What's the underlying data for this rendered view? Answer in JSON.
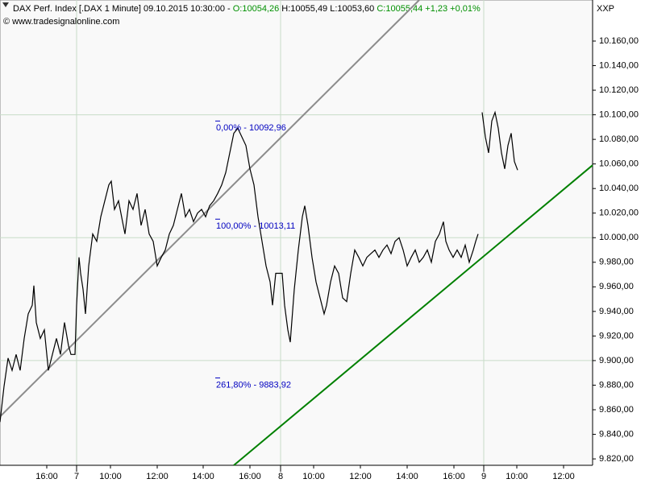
{
  "chart_data": {
    "type": "line",
    "header": {
      "instrument": "DAX Perf. Index [.DAX  1 Minute] 09.10.2015 10:30:00 -",
      "open": "O:10054,26",
      "high_low": "H:10055,49 L:10053,60",
      "close": "C:10055,44 +1,23 +0,01%",
      "copyright": "© www.tradesignalonline.com",
      "axis_name": "XXP"
    },
    "xlim": [
      0,
      735
    ],
    "xticks": [
      {
        "value": 58,
        "label": "16:00"
      },
      {
        "value": 95,
        "label": "7"
      },
      {
        "value": 137,
        "label": "10:00"
      },
      {
        "value": 195,
        "label": "12:00"
      },
      {
        "value": 252,
        "label": "14:00"
      },
      {
        "value": 310,
        "label": "16:00"
      },
      {
        "value": 348,
        "label": "8"
      },
      {
        "value": 389,
        "label": "10:00"
      },
      {
        "value": 447,
        "label": "12:00"
      },
      {
        "value": 505,
        "label": "14:00"
      },
      {
        "value": 563,
        "label": "16:00"
      },
      {
        "value": 600,
        "label": "9"
      },
      {
        "value": 641,
        "label": "10:00"
      },
      {
        "value": 699,
        "label": "12:00"
      }
    ],
    "x_grid_lines": [
      95,
      348,
      600
    ],
    "ylim": [
      9814.8,
      10193.4
    ],
    "yticks": [
      {
        "value": 9820,
        "label": "9.820,00"
      },
      {
        "value": 9840,
        "label": "9.840,00"
      },
      {
        "value": 9860,
        "label": "9.860,00"
      },
      {
        "value": 9880,
        "label": "9.880,00"
      },
      {
        "value": 9900,
        "label": "9.900,00"
      },
      {
        "value": 9920,
        "label": "9.920,00"
      },
      {
        "value": 9940,
        "label": "9.940,00"
      },
      {
        "value": 9960,
        "label": "9.960,00"
      },
      {
        "value": 9980,
        "label": "9.980,00"
      },
      {
        "value": 10000,
        "label": "10.000,00"
      },
      {
        "value": 10020,
        "label": "10.020,00"
      },
      {
        "value": 10040,
        "label": "10.040,00"
      },
      {
        "value": 10060,
        "label": "10.060,00"
      },
      {
        "value": 10080,
        "label": "10.080,00"
      },
      {
        "value": 10100,
        "label": "10.100,00"
      },
      {
        "value": 10120,
        "label": "10.120,00"
      },
      {
        "value": 10140,
        "label": "10.140,00"
      },
      {
        "value": 10160,
        "label": "10.160,00"
      }
    ],
    "y_grid_lines": [
      9900,
      10000,
      10100
    ],
    "series": [
      {
        "color": "#000000",
        "x": [
          0,
          5,
          10,
          15,
          20,
          25,
          30,
          35,
          40,
          42,
          45,
          50,
          55,
          60,
          65,
          70,
          75,
          80,
          85,
          88,
          93,
          95,
          98,
          100,
          103,
          106,
          110,
          115,
          120,
          125,
          130,
          135,
          138,
          142,
          147,
          152,
          155,
          160,
          165,
          170,
          175,
          180,
          185,
          190,
          195,
          200,
          205,
          210,
          215,
          220,
          225,
          230,
          235,
          240,
          245,
          250,
          255,
          260,
          265,
          270,
          275,
          280,
          285,
          290,
          295,
          300,
          305,
          310,
          315,
          320,
          325,
          330,
          335,
          338,
          342,
          350,
          353,
          357,
          360,
          365,
          370,
          375,
          378,
          382,
          387,
          392,
          397,
          402,
          405,
          410,
          415,
          420,
          425,
          430,
          435,
          440,
          445,
          450,
          455,
          460,
          465,
          470,
          475,
          480,
          485,
          490,
          495,
          500,
          505,
          510,
          515,
          520,
          525,
          530,
          535,
          540,
          545,
          550,
          553,
          557,
          562,
          567,
          572,
          577,
          582,
          587,
          590,
          593,
          596,
          598,
          602,
          606,
          610,
          614,
          618,
          622,
          626,
          630,
          634,
          638,
          642
        ],
        "values": [
          9850,
          9879,
          9902,
          9892,
          9905,
          9892,
          9918,
          9938,
          9945,
          9961,
          9931,
          9918,
          9925,
          9892,
          9905,
          9918,
          9905,
          9931,
          9912,
          9905,
          9905,
          9945,
          9984,
          9971,
          9958,
          9938,
          9977,
          10003,
          9997,
          10017,
          10030,
          10043,
          10046,
          10023,
          10030,
          10013,
          10003,
          10030,
          10023,
          10036,
          10010,
          10023,
          10003,
          9997,
          9977,
          9984,
          9990,
          10003,
          10010,
          10023,
          10036,
          10017,
          10023,
          10013,
          10020,
          10023,
          10017,
          10026,
          10030,
          10036,
          10043,
          10053,
          10069,
          10085,
          10089,
          10082,
          10075,
          10056,
          10043,
          10017,
          9997,
          9977,
          9964,
          9945,
          9971,
          9971,
          9945,
          9925,
          9915,
          9958,
          9990,
          10017,
          10026,
          10010,
          9984,
          9964,
          9951,
          9938,
          9945,
          9964,
          9977,
          9971,
          9951,
          9948,
          9971,
          9990,
          9984,
          9977,
          9984,
          9987,
          9990,
          9984,
          9990,
          9994,
          9987,
          9997,
          10000,
          9990,
          9977,
          9984,
          9990,
          9980,
          9984,
          9990,
          9980,
          9997,
          10003,
          10013,
          9997,
          9990,
          9984,
          9990,
          9984,
          9994,
          9980,
          9990,
          9997,
          10003,
          null,
          10102,
          10082,
          10069,
          10095,
          10102,
          10089,
          10069,
          10056,
          10075,
          10085,
          10062,
          10055
        ]
      }
    ],
    "trendlines": [
      {
        "color": "#8c8c8c",
        "x": [
          0,
          520
        ],
        "values": [
          9854.4,
          10193.4
        ]
      },
      {
        "color": "#008000",
        "x": [
          290,
          735
        ],
        "values": [
          9814.8,
          10059
        ]
      }
    ],
    "fib_levels": [
      {
        "label": "0,00% - 10092,96",
        "value": 10092.96,
        "color": "#0000c0"
      },
      {
        "label": "100,00% - 10013,11",
        "value": 10013.11,
        "color": "#0000c0"
      },
      {
        "label": "261,80% - 9883,92",
        "value": 9883.92,
        "color": "#0000c0"
      }
    ]
  }
}
